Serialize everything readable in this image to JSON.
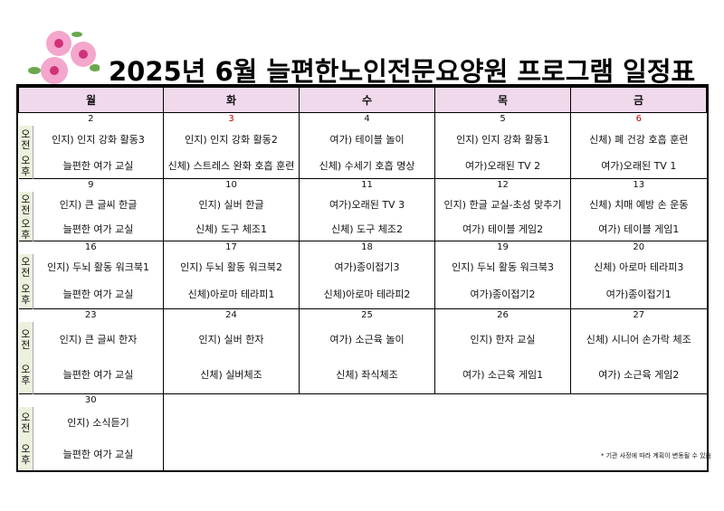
{
  "title": "2025년 6월 늘편한노인전문요양원 프로그램 일정표",
  "colors": {
    "header_bg": "#f1d9ec",
    "side_bg": "#ebf1dc",
    "holiday": "#c00000"
  },
  "days": [
    "월",
    "화",
    "수",
    "목",
    "금"
  ],
  "side": {
    "am": "오전",
    "pm": "오후"
  },
  "weeks": [
    {
      "dates": [
        "2",
        "3",
        "4",
        "5",
        "6"
      ],
      "am": [
        "인지) 인지 강화 활동3",
        "인지) 인지 강화 활동2",
        "여가) 테이블 놀이",
        "인지) 인지 강화 활동1",
        "신체) 폐 건강 호흡 훈련"
      ],
      "pm": [
        "늘편한 여가 교실",
        "신체) 스트레스 완화 호흡 훈련",
        "신체) 수세기 호흡 명상",
        "여가)오래된 TV 2",
        "여가)오래된 TV 1"
      ]
    },
    {
      "dates": [
        "9",
        "10",
        "11",
        "12",
        "13"
      ],
      "am": [
        "인지) 큰 글씨 한글",
        "인지) 실버 한글",
        "여가)오래된 TV 3",
        "인지) 한글 교실-초성 맞추기",
        "신체) 치매 예방 손 운동"
      ],
      "pm": [
        "늘편한 여가 교실",
        "신체) 도구 체조1",
        "신체) 도구 체조2",
        "여가) 테이블 게임2",
        "여가) 테이블 게임1"
      ]
    },
    {
      "dates": [
        "16",
        "17",
        "18",
        "19",
        "20"
      ],
      "am": [
        "인지) 두뇌 활동 워크북1",
        "인지) 두뇌 활동 워크북2",
        "여가)종이접기3",
        "인지) 두뇌 활동 워크북3",
        "신체) 아로마 테라피3"
      ],
      "pm": [
        "늘편한 여가 교실",
        "신체)아로마 테라피1",
        "신체)아로마 테라피2",
        "여가)종이접기2",
        "여가)종이접기1"
      ]
    },
    {
      "dates": [
        "23",
        "24",
        "25",
        "26",
        "27"
      ],
      "am": [
        "인지) 큰 글씨 한자",
        "인지) 실버 한자",
        "여가) 소근육 놀이",
        "인지) 한자 교실",
        "신체) 시니어 손가락 체조"
      ],
      "pm": [
        "늘편한 여가 교실",
        "신체) 실버체조",
        "신체) 좌식체조",
        "여가) 소근육 게임1",
        "여가) 소근육 게임2"
      ]
    },
    {
      "dates": [
        "30"
      ],
      "am": [
        "인지) 소식듣기"
      ],
      "pm": [
        "늘편한 여가 교실"
      ]
    }
  ],
  "holidays": [
    "3",
    "6"
  ],
  "note": "* 기관 사정에 따라 계획이 변동될 수 있음"
}
